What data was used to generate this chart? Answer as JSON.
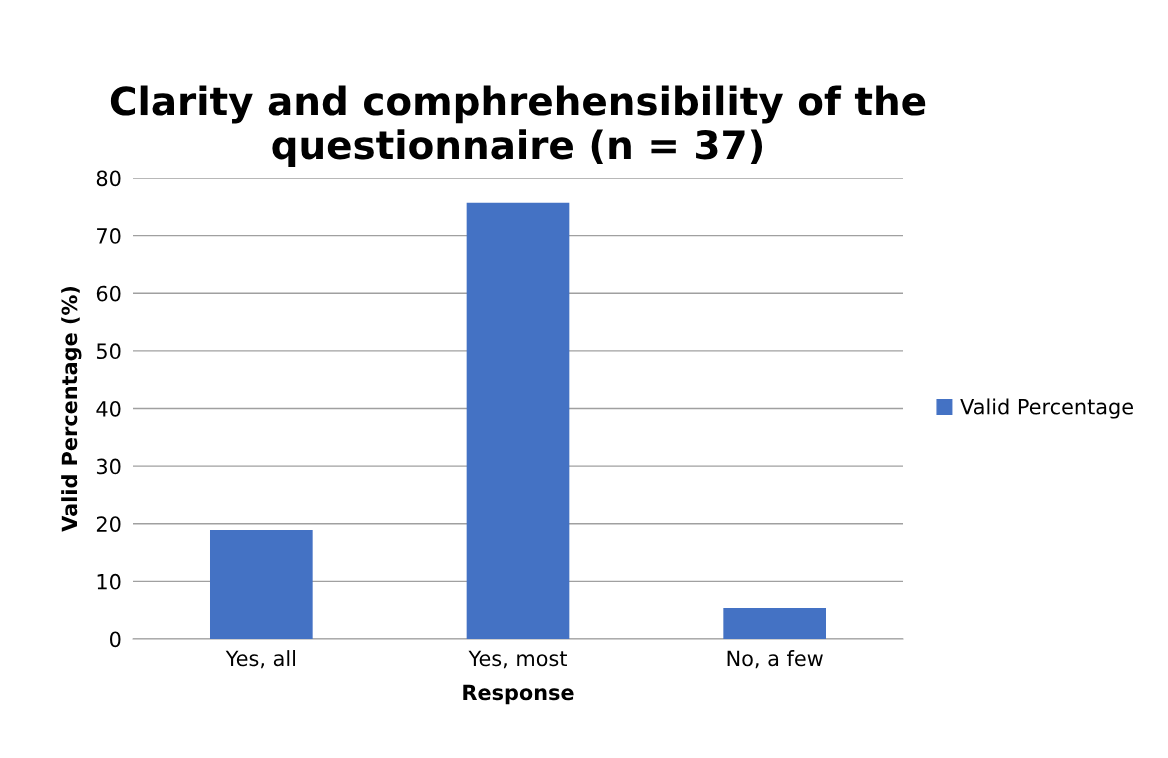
{
  "chart_data": {
    "type": "bar",
    "title": "Clarity and comphrehensibility of the questionnaire (n = 37)",
    "xlabel": "Response",
    "ylabel": "Valid Percentage (%)",
    "categories": [
      "Yes, all",
      "Yes, most",
      "No, a few"
    ],
    "series": [
      {
        "name": "Valid Percentage",
        "color": "#4472c4",
        "values": [
          18.9,
          75.7,
          5.4
        ]
      }
    ],
    "ylim": [
      0,
      80
    ],
    "yticks": [
      0,
      10,
      20,
      30,
      40,
      50,
      60,
      70,
      80
    ],
    "grid": "y",
    "legend": "right"
  }
}
